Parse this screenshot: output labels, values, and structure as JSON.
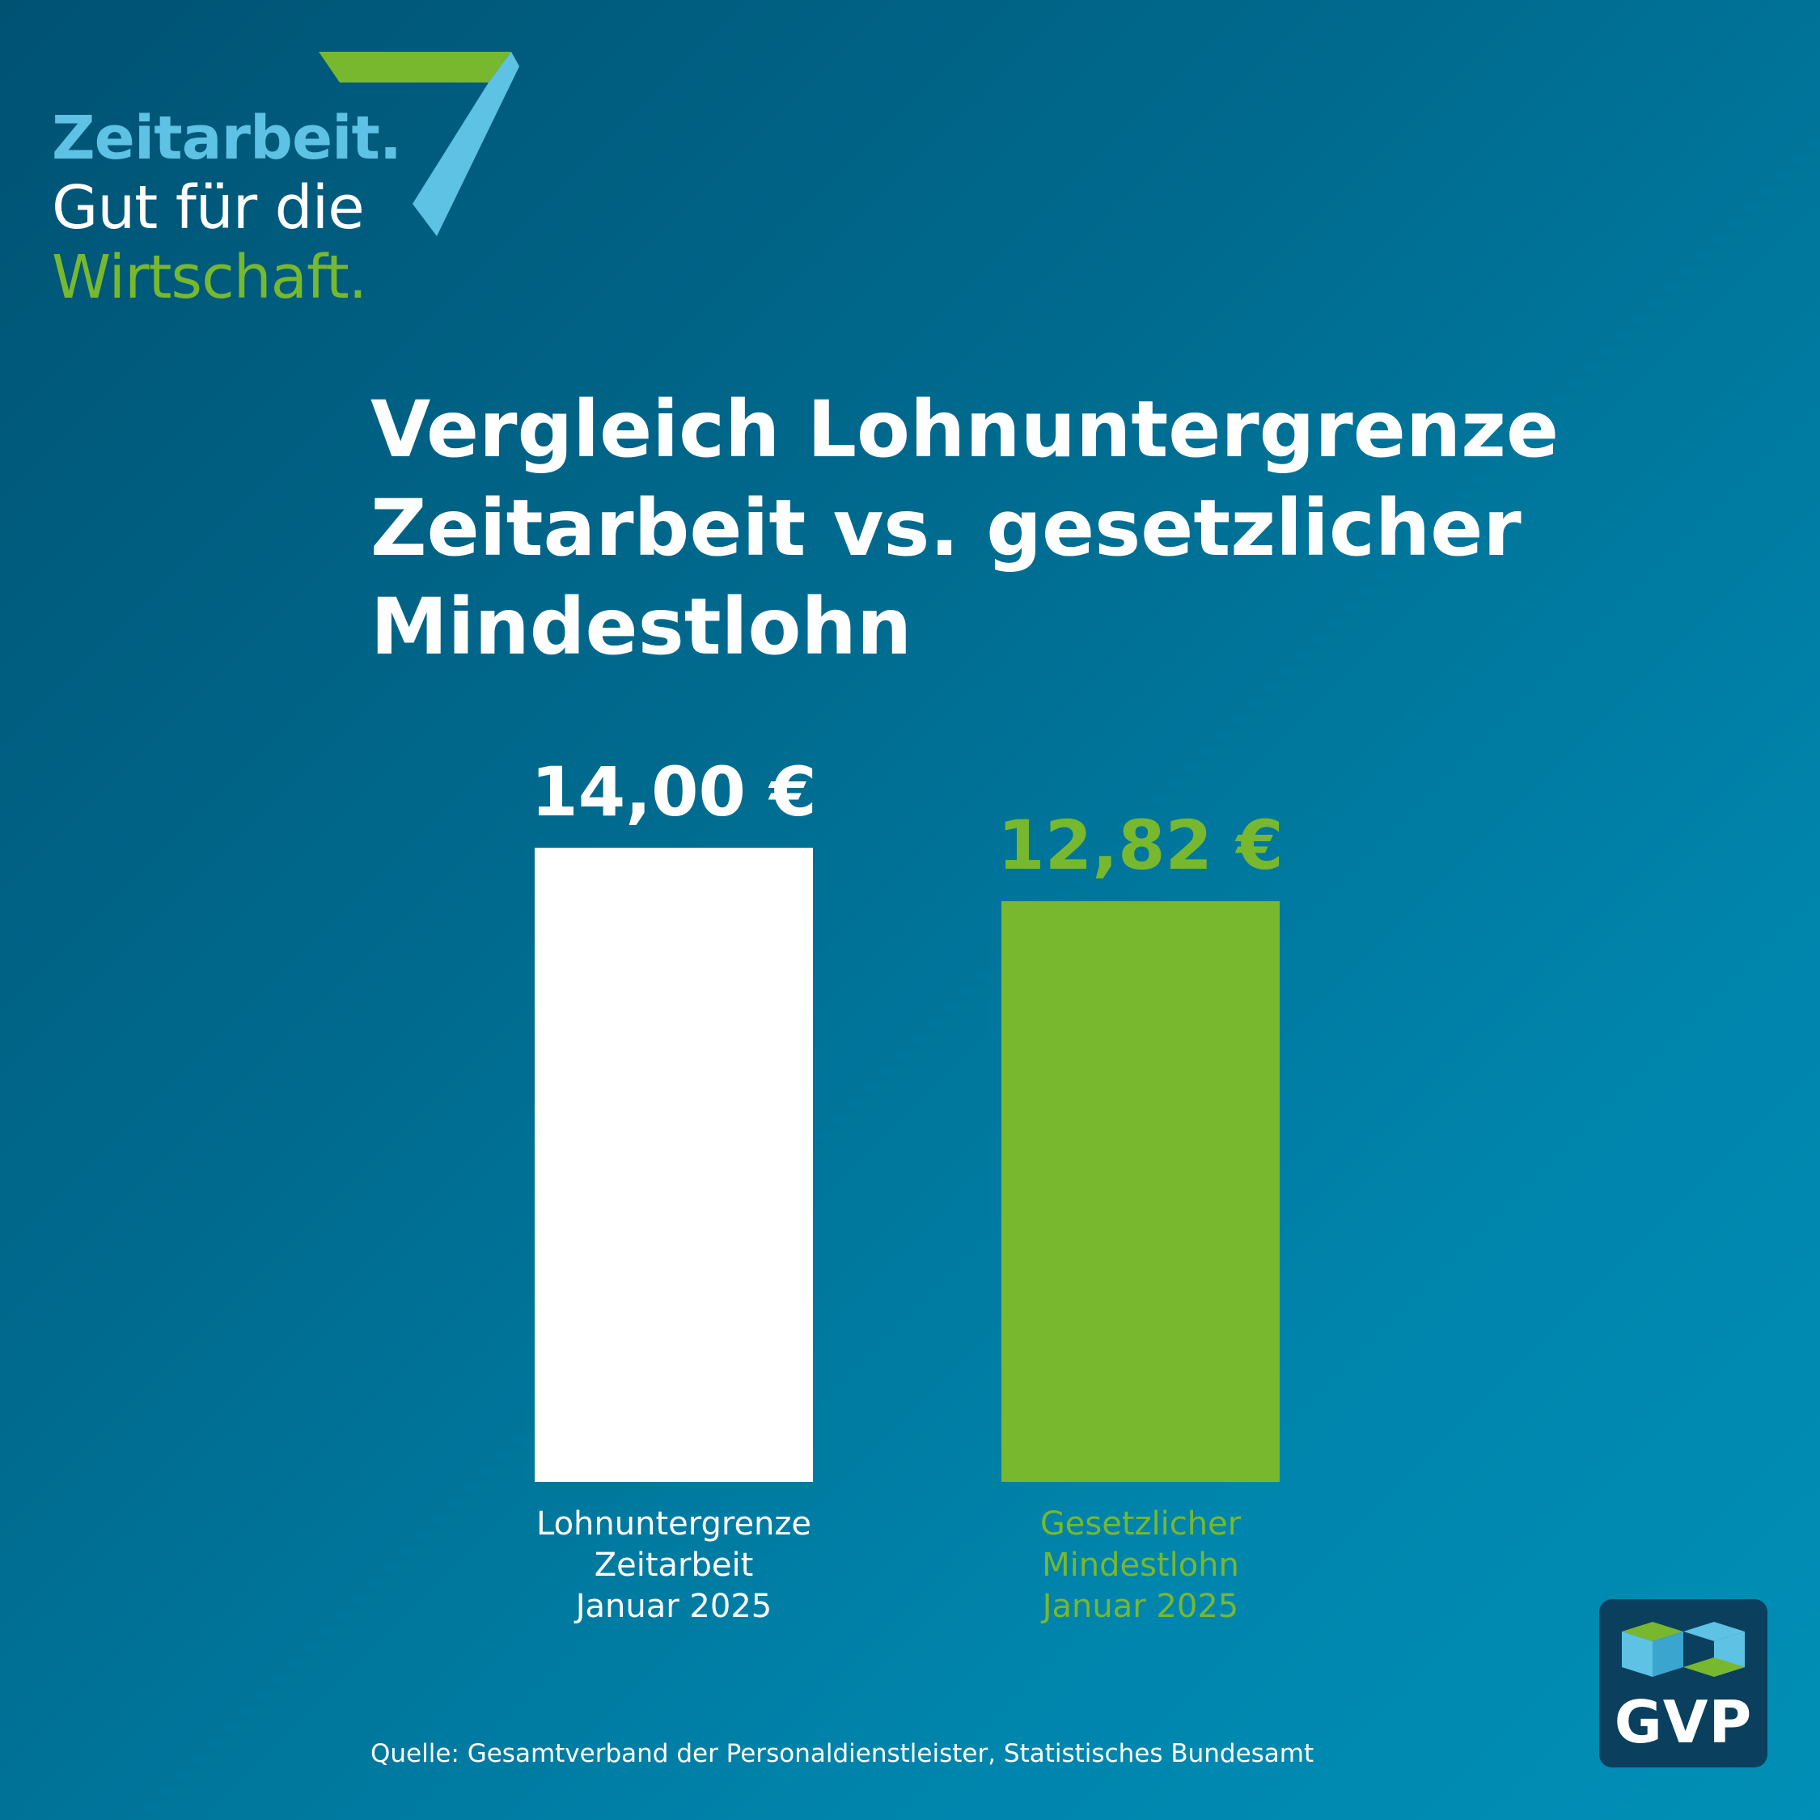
{
  "logo": {
    "line1": "Zeitarbeit.",
    "line2": "Gut für die",
    "line3": "Wirtschaft."
  },
  "title": {
    "line1": "Vergleich Lohnuntergrenze",
    "line2": "Zeitarbeit vs. gesetzlicher",
    "line3": "Mindestlohn"
  },
  "chart_data": {
    "type": "bar",
    "title": "Vergleich Lohnuntergrenze Zeitarbeit vs. gesetzlicher Mindestlohn",
    "categories": [
      [
        "Lohnuntergrenze",
        "Zeitarbeit",
        "Januar 2025"
      ],
      [
        "Gesetzlicher",
        "Mindestlohn",
        "Januar 2025"
      ]
    ],
    "values": [
      14.0,
      12.82
    ],
    "value_labels": [
      "14,00 €",
      "12,82 €"
    ],
    "colors": [
      "#ffffff",
      "#78b82e"
    ],
    "label_colors": [
      "#ffffff",
      "#78b82e"
    ],
    "ylim": [
      0,
      14.0
    ],
    "grid": false
  },
  "source": "Quelle: Gesamtverband der Personaldienstleister, Statistisches Bundesamt",
  "badge": {
    "label": "GVP",
    "icon": "gvp-logo-icon"
  },
  "colors": {
    "background_start": "#005273",
    "background_end": "#008fb6",
    "accent_light_blue": "#5ec2e4",
    "accent_green": "#78b82e",
    "badge_bg": "#0a3f5e"
  }
}
